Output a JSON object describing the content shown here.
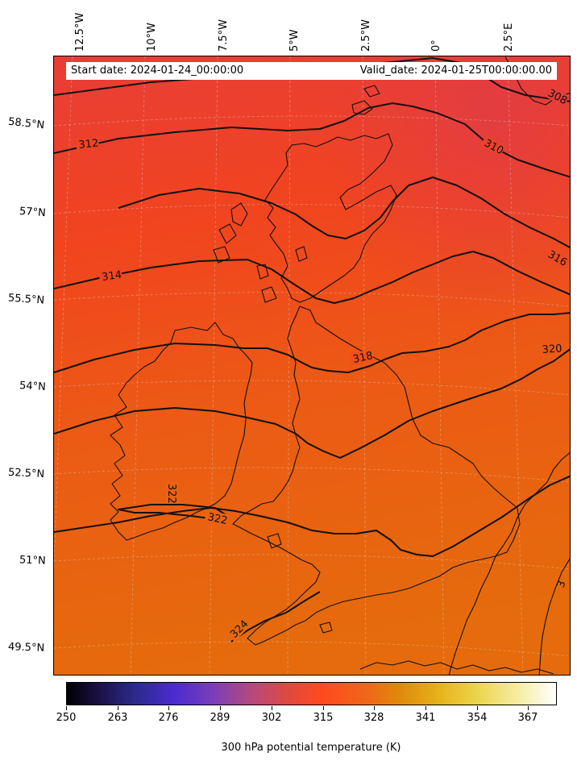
{
  "header": {
    "start_date": "Start date: 2024-01-24_00:00:00",
    "valid_date": "Valid_date: 2024-01-25T00:00:00.00"
  },
  "axes": {
    "longitude_labels": [
      "12.5°W",
      "10°W",
      "7.5°W",
      "5°W",
      "2.5°W",
      "0°",
      "2.5°E"
    ],
    "latitude_labels": [
      "58.5°N",
      "57°N",
      "55.5°N",
      "54°N",
      "52.5°N",
      "51°N",
      "49.5°N"
    ]
  },
  "contours": {
    "labels": [
      "308",
      "310",
      "312",
      "314",
      "316",
      "318",
      "320",
      "322",
      "322",
      "324",
      "3"
    ]
  },
  "colorbar": {
    "ticks": [
      "250",
      "263",
      "276",
      "289",
      "302",
      "315",
      "328",
      "341",
      "354",
      "367"
    ],
    "title": "300 hPa potential temperature (K)",
    "colormap": [
      "#000000",
      "#2c2a8c",
      "#4b2bd0",
      "#b64a7a",
      "#ff4a1f",
      "#e0880c",
      "#e6b21a",
      "#f6ec9e",
      "#ffffff"
    ]
  },
  "field_colors": {
    "north": "#e63e3a",
    "middle": "#f24a20",
    "south": "#e86a10"
  }
}
